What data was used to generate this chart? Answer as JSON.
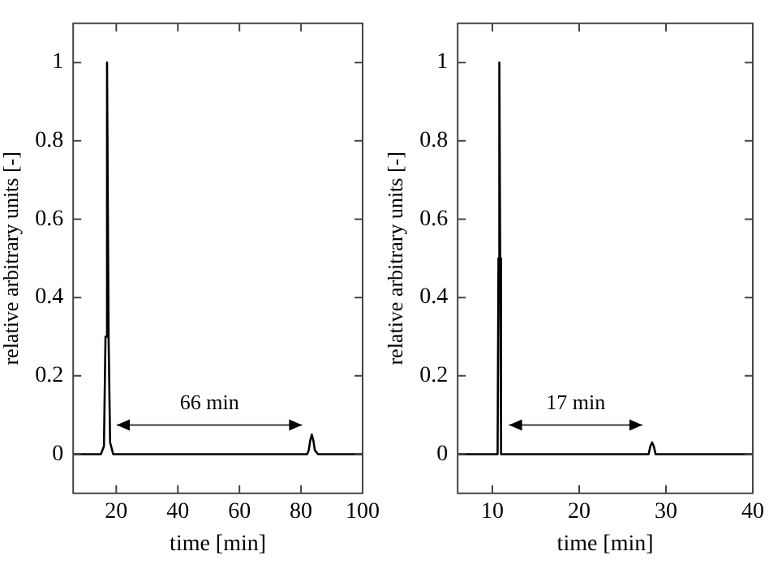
{
  "chart_data": [
    {
      "type": "line",
      "xlabel": "time [min]",
      "ylabel": "relative arbitrary units [-]",
      "xlim": [
        6,
        100
      ],
      "ylim": [
        -0.1,
        1.1
      ],
      "xticks": [
        20,
        40,
        60,
        80,
        100
      ],
      "yticks": [
        0,
        0.2,
        0.4,
        0.6,
        0.8,
        1
      ],
      "grid": false,
      "legend": false,
      "marker": "none",
      "line_style": "solid",
      "series": [
        {
          "color": "#000000",
          "x": [
            6,
            15,
            16,
            16.5,
            17,
            17.5,
            18,
            19,
            82,
            82.5,
            83,
            83.5,
            84,
            84.5,
            85.5,
            100
          ],
          "values": [
            0,
            0,
            0.02,
            0.3,
            1,
            0.3,
            0.03,
            0,
            0,
            0.01,
            0.035,
            0.05,
            0.035,
            0.01,
            0,
            0
          ]
        }
      ],
      "annotations": [
        "66 min"
      ]
    },
    {
      "type": "line",
      "xlabel": "time [min]",
      "ylabel": "relative arbitrary units [-]",
      "xlim": [
        6,
        40
      ],
      "ylim": [
        -0.1,
        1.1
      ],
      "xticks": [
        10,
        20,
        30,
        40
      ],
      "yticks": [
        0,
        0.2,
        0.4,
        0.6,
        0.8,
        1
      ],
      "grid": false,
      "legend": false,
      "marker": "none",
      "line_style": "solid",
      "series": [
        {
          "color": "#000000",
          "x": [
            6,
            10.6,
            10.7,
            10.8,
            10.9,
            11,
            28,
            28.2,
            28.4,
            28.6,
            28.8,
            40
          ],
          "values": [
            0,
            0,
            0.5,
            1,
            0.5,
            0,
            0,
            0.02,
            0.03,
            0.02,
            0,
            0
          ]
        }
      ],
      "annotations": [
        "17 min"
      ]
    }
  ]
}
